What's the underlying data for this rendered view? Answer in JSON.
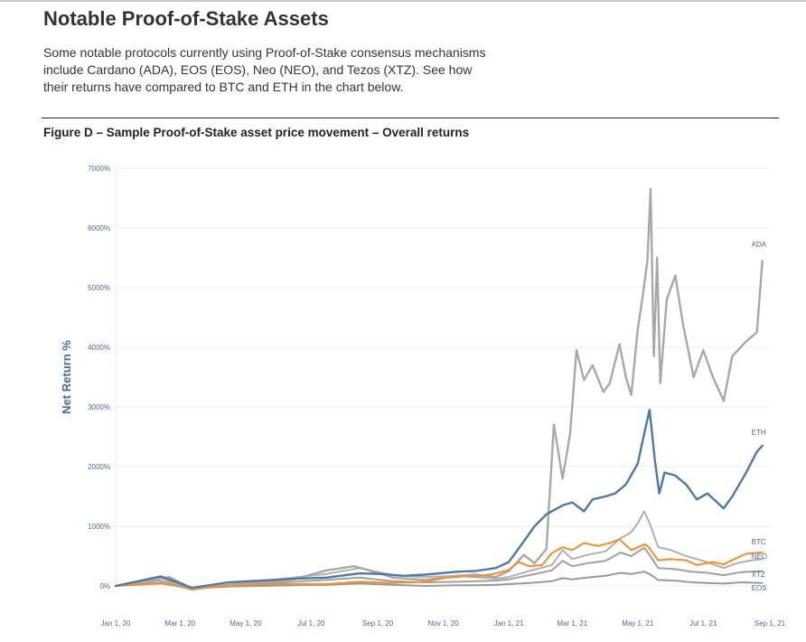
{
  "page": {
    "title": "Notable Proof-of-Stake Assets",
    "intro_lines": [
      "Some notable protocols currently using Proof-of-Stake consensus mechanisms",
      "include Cardano (ADA), EOS (EOS), Neo (NEO), and Tezos (XTZ). See how",
      "their returns have compared to BTC and ETH in the chart below."
    ],
    "figure_caption": "Figure D – Sample Proof-of-Stake asset price movement – Overall returns"
  },
  "chart_data": {
    "type": "line",
    "xlabel": "",
    "ylabel": "Net Return %",
    "ylim": [
      0,
      7000
    ],
    "y_ticks": [
      0,
      1000,
      2000,
      3000,
      4000,
      5000,
      6000,
      7000
    ],
    "y_tick_labels": [
      "0%",
      "1000%",
      "2000%",
      "3000%",
      "4000%",
      "5000%",
      "6000%",
      "7000%"
    ],
    "x_range": [
      "2020-01-01",
      "2021-09-01"
    ],
    "x_ticks": [
      "2020-01-01",
      "2020-03-01",
      "2020-05-01",
      "2020-07-01",
      "2020-09-01",
      "2020-11-01",
      "2021-01-01",
      "2021-03-01",
      "2021-05-01",
      "2021-07-01",
      "2021-09-01"
    ],
    "x_tick_labels": [
      "Jan 1, 20",
      "Mar 1, 20",
      "May 1, 20",
      "Jul 1, 20",
      "Sep 1, 20",
      "Nov 1, 20",
      "Jan 1, 21",
      "Mar 1, 21",
      "May 1, 21",
      "Jul 1, 21",
      "Sep 1, 21"
    ],
    "grid": true,
    "legend": "labels at line ends",
    "series": [
      {
        "name": "ADA",
        "color": "#a8a8a8",
        "points": [
          [
            "2020-01-01",
            0
          ],
          [
            "2020-02-10",
            90
          ],
          [
            "2020-03-12",
            -60
          ],
          [
            "2020-04-15",
            20
          ],
          [
            "2020-05-15",
            60
          ],
          [
            "2020-06-15",
            110
          ],
          [
            "2020-07-15",
            260
          ],
          [
            "2020-08-10",
            330
          ],
          [
            "2020-09-01",
            220
          ],
          [
            "2020-09-15",
            140
          ],
          [
            "2020-10-15",
            100
          ],
          [
            "2020-11-15",
            170
          ],
          [
            "2020-12-01",
            190
          ],
          [
            "2020-12-20",
            150
          ],
          [
            "2021-01-01",
            250
          ],
          [
            "2021-01-15",
            520
          ],
          [
            "2021-01-25",
            380
          ],
          [
            "2021-02-05",
            620
          ],
          [
            "2021-02-12",
            2700
          ],
          [
            "2021-02-20",
            1800
          ],
          [
            "2021-02-27",
            2550
          ],
          [
            "2021-03-05",
            3950
          ],
          [
            "2021-03-12",
            3450
          ],
          [
            "2021-03-20",
            3700
          ],
          [
            "2021-03-30",
            3250
          ],
          [
            "2021-04-05",
            3400
          ],
          [
            "2021-04-14",
            4050
          ],
          [
            "2021-04-20",
            3500
          ],
          [
            "2021-04-25",
            3200
          ],
          [
            "2021-05-01",
            4300
          ],
          [
            "2021-05-06",
            4900
          ],
          [
            "2021-05-10",
            5450
          ],
          [
            "2021-05-13",
            6650
          ],
          [
            "2021-05-16",
            3850
          ],
          [
            "2021-05-19",
            5500
          ],
          [
            "2021-05-22",
            3400
          ],
          [
            "2021-05-28",
            4800
          ],
          [
            "2021-06-05",
            5200
          ],
          [
            "2021-06-12",
            4400
          ],
          [
            "2021-06-22",
            3500
          ],
          [
            "2021-07-01",
            3950
          ],
          [
            "2021-07-10",
            3500
          ],
          [
            "2021-07-20",
            3100
          ],
          [
            "2021-07-28",
            3850
          ],
          [
            "2021-08-10",
            4100
          ],
          [
            "2021-08-20",
            4250
          ],
          [
            "2021-08-25",
            5450
          ]
        ]
      },
      {
        "name": "ETH",
        "color": "#4e79a7",
        "points": [
          [
            "2020-01-01",
            0
          ],
          [
            "2020-02-12",
            160
          ],
          [
            "2020-03-12",
            -30
          ],
          [
            "2020-04-15",
            60
          ],
          [
            "2020-05-15",
            90
          ],
          [
            "2020-06-15",
            120
          ],
          [
            "2020-07-15",
            140
          ],
          [
            "2020-08-15",
            210
          ],
          [
            "2020-09-05",
            200
          ],
          [
            "2020-09-25",
            170
          ],
          [
            "2020-10-15",
            190
          ],
          [
            "2020-11-15",
            240
          ],
          [
            "2020-12-01",
            250
          ],
          [
            "2020-12-20",
            300
          ],
          [
            "2021-01-01",
            400
          ],
          [
            "2021-01-15",
            750
          ],
          [
            "2021-01-25",
            1000
          ],
          [
            "2021-02-05",
            1200
          ],
          [
            "2021-02-20",
            1350
          ],
          [
            "2021-03-01",
            1400
          ],
          [
            "2021-03-12",
            1250
          ],
          [
            "2021-03-20",
            1450
          ],
          [
            "2021-04-01",
            1500
          ],
          [
            "2021-04-10",
            1550
          ],
          [
            "2021-04-20",
            1700
          ],
          [
            "2021-05-01",
            2050
          ],
          [
            "2021-05-07",
            2550
          ],
          [
            "2021-05-12",
            2950
          ],
          [
            "2021-05-17",
            2100
          ],
          [
            "2021-05-21",
            1550
          ],
          [
            "2021-05-26",
            1900
          ],
          [
            "2021-06-05",
            1850
          ],
          [
            "2021-06-15",
            1700
          ],
          [
            "2021-06-25",
            1450
          ],
          [
            "2021-07-05",
            1550
          ],
          [
            "2021-07-20",
            1300
          ],
          [
            "2021-07-28",
            1500
          ],
          [
            "2021-08-10",
            1900
          ],
          [
            "2021-08-20",
            2250
          ],
          [
            "2021-08-25",
            2350
          ]
        ]
      },
      {
        "name": "BTC",
        "color": "#f28e2b",
        "points": [
          [
            "2020-01-01",
            0
          ],
          [
            "2020-02-12",
            40
          ],
          [
            "2020-03-12",
            -40
          ],
          [
            "2020-04-15",
            0
          ],
          [
            "2020-05-15",
            30
          ],
          [
            "2020-06-15",
            30
          ],
          [
            "2020-07-15",
            30
          ],
          [
            "2020-08-15",
            70
          ],
          [
            "2020-09-15",
            50
          ],
          [
            "2020-10-15",
            70
          ],
          [
            "2020-11-01",
            130
          ],
          [
            "2020-11-20",
            160
          ],
          [
            "2020-12-01",
            150
          ],
          [
            "2020-12-20",
            210
          ],
          [
            "2021-01-01",
            270
          ],
          [
            "2021-01-10",
            400
          ],
          [
            "2021-01-20",
            330
          ],
          [
            "2021-02-01",
            350
          ],
          [
            "2021-02-10",
            550
          ],
          [
            "2021-02-20",
            650
          ],
          [
            "2021-03-01",
            600
          ],
          [
            "2021-03-12",
            720
          ],
          [
            "2021-03-25",
            670
          ],
          [
            "2021-04-05",
            720
          ],
          [
            "2021-04-14",
            780
          ],
          [
            "2021-04-25",
            600
          ],
          [
            "2021-05-08",
            700
          ],
          [
            "2021-05-12",
            630
          ],
          [
            "2021-05-20",
            430
          ],
          [
            "2021-06-01",
            450
          ],
          [
            "2021-06-15",
            430
          ],
          [
            "2021-06-25",
            350
          ],
          [
            "2021-07-10",
            400
          ],
          [
            "2021-07-20",
            360
          ],
          [
            "2021-07-30",
            450
          ],
          [
            "2021-08-10",
            540
          ],
          [
            "2021-08-25",
            560
          ]
        ]
      },
      {
        "name": "NEO",
        "color": "#b0b0b0",
        "points": [
          [
            "2020-01-01",
            0
          ],
          [
            "2020-02-12",
            120
          ],
          [
            "2020-03-12",
            -30
          ],
          [
            "2020-04-15",
            20
          ],
          [
            "2020-05-15",
            80
          ],
          [
            "2020-06-15",
            140
          ],
          [
            "2020-07-15",
            200
          ],
          [
            "2020-08-15",
            300
          ],
          [
            "2020-09-15",
            180
          ],
          [
            "2020-10-15",
            150
          ],
          [
            "2020-11-15",
            170
          ],
          [
            "2020-12-01",
            150
          ],
          [
            "2020-12-20",
            120
          ],
          [
            "2021-01-01",
            150
          ],
          [
            "2021-01-20",
            250
          ],
          [
            "2021-02-10",
            350
          ],
          [
            "2021-02-20",
            600
          ],
          [
            "2021-03-01",
            450
          ],
          [
            "2021-03-15",
            520
          ],
          [
            "2021-04-01",
            580
          ],
          [
            "2021-04-15",
            800
          ],
          [
            "2021-04-25",
            900
          ],
          [
            "2021-05-01",
            1050
          ],
          [
            "2021-05-07",
            1250
          ],
          [
            "2021-05-12",
            1050
          ],
          [
            "2021-05-20",
            650
          ],
          [
            "2021-06-01",
            600
          ],
          [
            "2021-06-15",
            500
          ],
          [
            "2021-07-01",
            420
          ],
          [
            "2021-07-20",
            300
          ],
          [
            "2021-08-01",
            380
          ],
          [
            "2021-08-15",
            430
          ],
          [
            "2021-08-25",
            450
          ]
        ]
      },
      {
        "name": "XTZ",
        "color": "#a0a0a0",
        "points": [
          [
            "2020-01-01",
            0
          ],
          [
            "2020-02-20",
            150
          ],
          [
            "2020-03-12",
            -40
          ],
          [
            "2020-04-15",
            20
          ],
          [
            "2020-05-15",
            40
          ],
          [
            "2020-06-15",
            70
          ],
          [
            "2020-07-15",
            100
          ],
          [
            "2020-08-15",
            140
          ],
          [
            "2020-09-15",
            80
          ],
          [
            "2020-10-15",
            60
          ],
          [
            "2020-11-15",
            70
          ],
          [
            "2020-12-01",
            80
          ],
          [
            "2020-12-20",
            90
          ],
          [
            "2021-01-01",
            110
          ],
          [
            "2021-01-20",
            180
          ],
          [
            "2021-02-10",
            260
          ],
          [
            "2021-02-20",
            420
          ],
          [
            "2021-03-01",
            330
          ],
          [
            "2021-03-15",
            380
          ],
          [
            "2021-04-01",
            420
          ],
          [
            "2021-04-15",
            560
          ],
          [
            "2021-04-25",
            500
          ],
          [
            "2021-05-07",
            640
          ],
          [
            "2021-05-12",
            520
          ],
          [
            "2021-05-20",
            300
          ],
          [
            "2021-06-05",
            280
          ],
          [
            "2021-06-20",
            240
          ],
          [
            "2021-07-05",
            220
          ],
          [
            "2021-07-20",
            180
          ],
          [
            "2021-08-05",
            230
          ],
          [
            "2021-08-25",
            250
          ]
        ]
      },
      {
        "name": "EOS",
        "color": "#999999",
        "points": [
          [
            "2020-01-01",
            0
          ],
          [
            "2020-02-20",
            60
          ],
          [
            "2020-03-12",
            -40
          ],
          [
            "2020-04-15",
            -10
          ],
          [
            "2020-05-15",
            0
          ],
          [
            "2020-06-15",
            10
          ],
          [
            "2020-07-15",
            20
          ],
          [
            "2020-08-15",
            40
          ],
          [
            "2020-09-15",
            20
          ],
          [
            "2020-10-15",
            0
          ],
          [
            "2020-11-15",
            10
          ],
          [
            "2020-12-01",
            10
          ],
          [
            "2020-12-20",
            20
          ],
          [
            "2021-01-01",
            30
          ],
          [
            "2021-01-20",
            50
          ],
          [
            "2021-02-10",
            80
          ],
          [
            "2021-02-20",
            130
          ],
          [
            "2021-03-01",
            110
          ],
          [
            "2021-03-15",
            140
          ],
          [
            "2021-04-01",
            170
          ],
          [
            "2021-04-15",
            220
          ],
          [
            "2021-04-25",
            200
          ],
          [
            "2021-05-07",
            240
          ],
          [
            "2021-05-12",
            200
          ],
          [
            "2021-05-20",
            100
          ],
          [
            "2021-06-05",
            90
          ],
          [
            "2021-06-20",
            60
          ],
          [
            "2021-07-05",
            50
          ],
          [
            "2021-07-20",
            40
          ],
          [
            "2021-08-05",
            60
          ],
          [
            "2021-08-25",
            50
          ]
        ]
      }
    ]
  }
}
